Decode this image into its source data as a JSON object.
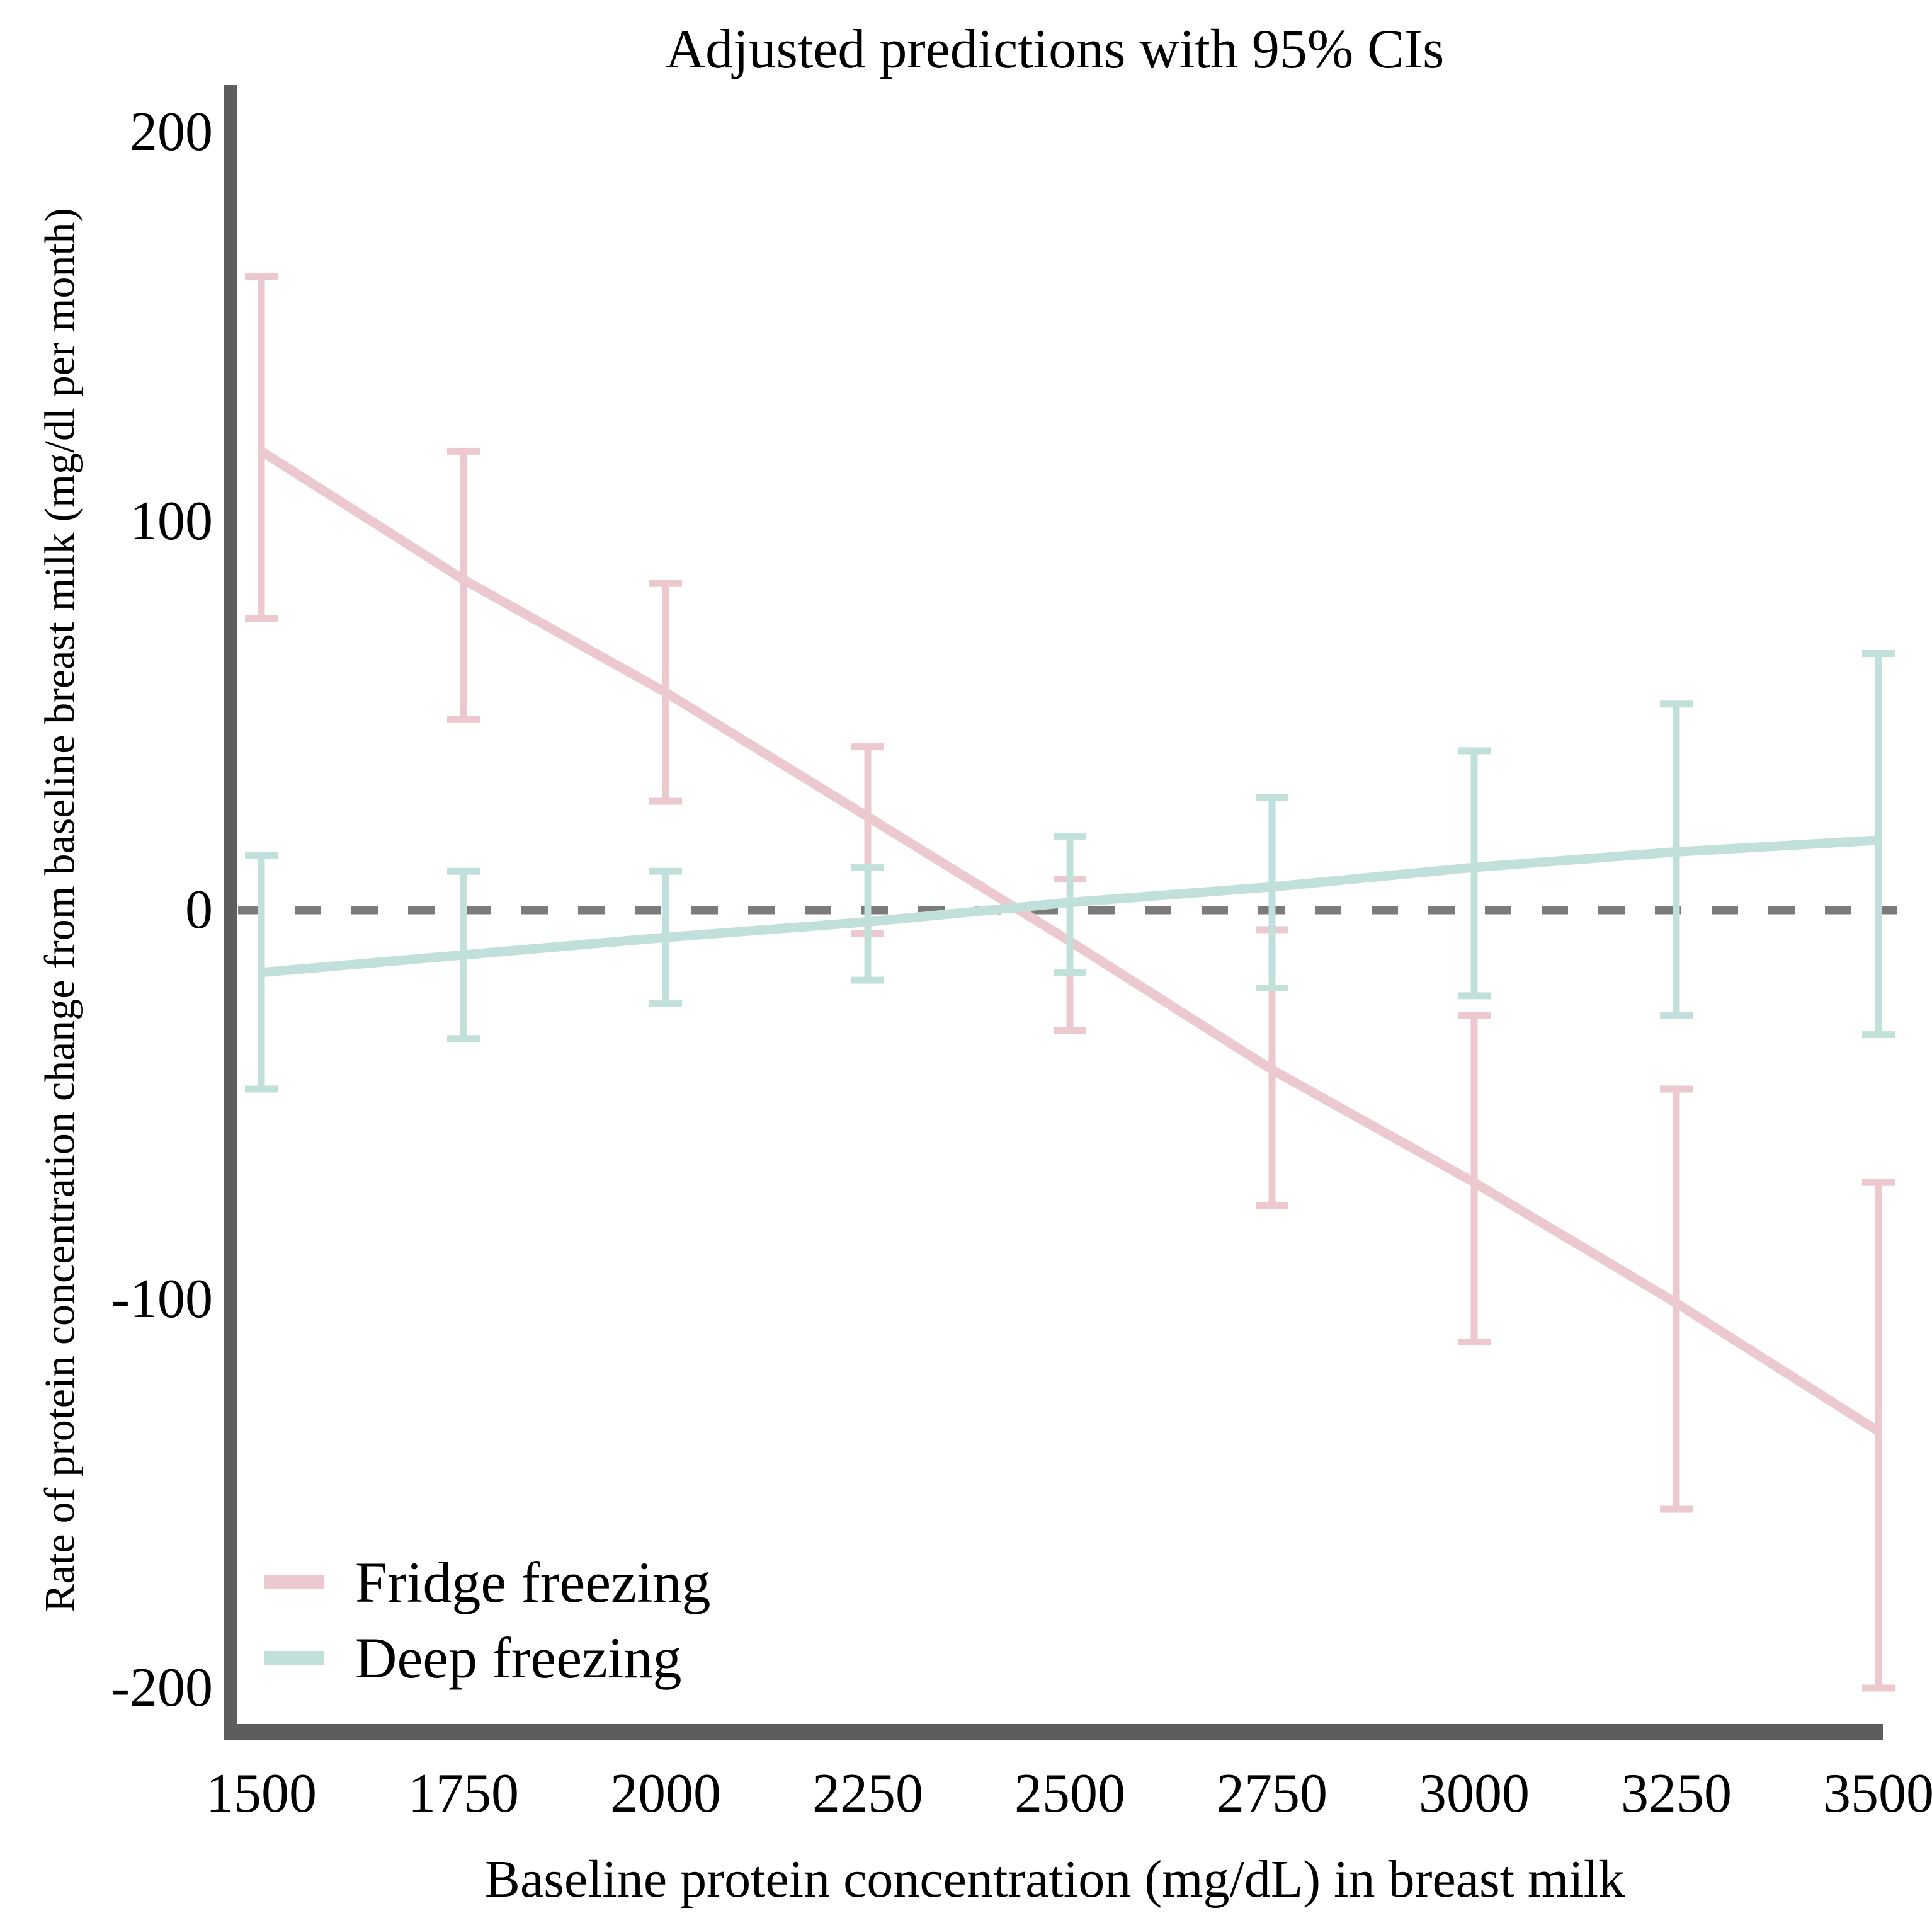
{
  "chart_data": {
    "type": "line",
    "title": "Adjusted predictions with 95% CIs",
    "xlabel": "Baseline protein concentration (mg/dL) in breast milk",
    "ylabel": "Rate of protein concentration change from baseline breast milk (mg/dl per month)",
    "x": [
      1500,
      1750,
      2000,
      2250,
      2500,
      2750,
      3000,
      3250,
      3500
    ],
    "xticks": [
      1500,
      1750,
      2000,
      2250,
      2500,
      2750,
      3000,
      3250,
      3500
    ],
    "yticks": [
      200,
      100,
      0,
      -100,
      -200
    ],
    "xlim": [
      1455,
      3545
    ],
    "ylim": [
      -215,
      215
    ],
    "grid": false,
    "zero_reference_line": {
      "y": 0,
      "style": "dashed",
      "color": "#7b7b7b"
    },
    "legend_position": "lower left",
    "error_bars": "95% confidence intervals with caps",
    "series": [
      {
        "name": "Fridge freezing",
        "color": "#ebc9ce",
        "values": [
          118,
          85,
          56,
          24,
          -8,
          -41,
          -70,
          -101,
          -134
        ],
        "ci_upper": [
          163,
          118,
          84,
          42,
          8,
          -5,
          -27,
          -46,
          -70
        ],
        "ci_lower": [
          75,
          49,
          28,
          -6,
          -31,
          -76,
          -111,
          -154,
          -200
        ]
      },
      {
        "name": "Deep freezing",
        "color": "#c2e0da",
        "values": [
          -16,
          -11.5,
          -7,
          -3,
          2,
          6,
          11,
          15,
          18
        ],
        "ci_upper": [
          14,
          10,
          10,
          11,
          19,
          29,
          41,
          53,
          66
        ],
        "ci_lower": [
          -46,
          -33,
          -24,
          -18,
          -16,
          -20,
          -22,
          -27,
          -32
        ]
      }
    ],
    "axis_color": "#5d5d5d",
    "text_color": "#000000",
    "background_color": "#ffffff"
  }
}
